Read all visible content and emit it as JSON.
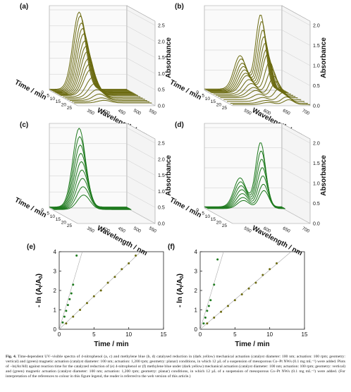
{
  "figure": {
    "caption_label": "Fig. 4.",
    "caption_text": "Time-dependent UV–visible spectra of 4-nitrophenol (a, c) and methylene blue (b, d) catalysed reduction in (dark yellow) mechanical actuation (catalyst diameter: 100 nm; actuation: 100 rpm; geometry: vertical) and (green) magnetic actuation (catalyst diameter: 100 nm; actuation: 1,200 rpm; geometry: planar) conditions, in which 12 µL of a suspension of mesoporous Co–Pt NWs (0.1 mg mL⁻¹) were added. Plots of −ln(At/A0) against reaction time for the catalyzed reduction of (e) 4-nitrophenol or (f) methylene blue under (dark yellow) mechanical actuation (catalyst diameter: 100 nm; actuation: 100 rpm; geometry: vertical) and (green) magnetic actuation (catalyst diameter: 100 nm; actuation: 1,200 rpm; geometry: planar) conditions, in which 12 µL of a suspension of mesoporous Co–Pt NWs (0.1 mg mL⁻¹) were added. (For interpretation of the references to colour in this figure legend, the reader is referred to the web version of this article.)"
  },
  "colors": {
    "yellow": "#6b6a10",
    "green": "#1e7a1e",
    "grid": "#cccccc"
  },
  "chart_data": [
    {
      "panel": "(a)",
      "type": "line",
      "subtype": "3d-waterfall",
      "color": "yellow",
      "xlabel": "Wavelength / nm",
      "ylabel": "Time / min",
      "zlabel": "Absorbance",
      "x_ticks": [
        "350",
        "400",
        "450",
        "500",
        "550"
      ],
      "y_ticks": [
        "0",
        "5",
        "10",
        "15",
        "20",
        "25"
      ],
      "z_ticks": [
        "0.0",
        "0.5",
        "1.0",
        "1.5",
        "2.0",
        "2.5"
      ],
      "xlim": [
        300,
        560
      ],
      "ylim": [
        0,
        25
      ],
      "zlim": [
        0,
        2.5
      ],
      "peak_wavelength": 400,
      "times": [
        0,
        1,
        2,
        3,
        4,
        5,
        6,
        7,
        8,
        9,
        10,
        12,
        14,
        16,
        18,
        20,
        22
      ],
      "peak_values": [
        2.4,
        2.3,
        2.1,
        1.95,
        1.8,
        1.6,
        1.45,
        1.3,
        1.1,
        0.95,
        0.8,
        0.6,
        0.45,
        0.3,
        0.2,
        0.12,
        0.08
      ]
    },
    {
      "panel": "(b)",
      "type": "line",
      "subtype": "3d-waterfall",
      "color": "yellow",
      "xlabel": "Wavelength / nm",
      "ylabel": "Time / min",
      "zlabel": "Absorbance",
      "x_ticks": [
        "550",
        "600",
        "650",
        "700"
      ],
      "y_ticks": [
        "0",
        "5",
        "10",
        "15",
        "20",
        "25"
      ],
      "z_ticks": [
        "0.0",
        "0.5",
        "1.0",
        "1.5",
        "2.0"
      ],
      "xlim": [
        520,
        720
      ],
      "ylim": [
        0,
        25
      ],
      "zlim": [
        0,
        2.0
      ],
      "peak_wavelength": 665,
      "times": [
        0,
        1,
        2,
        3,
        4,
        5,
        6,
        8,
        10,
        12,
        14,
        17,
        20,
        23,
        25
      ],
      "peak_values": [
        1.85,
        1.7,
        1.5,
        1.35,
        1.2,
        1.05,
        0.95,
        0.8,
        0.65,
        0.5,
        0.4,
        0.3,
        0.22,
        0.16,
        0.12
      ]
    },
    {
      "panel": "(c)",
      "type": "line",
      "subtype": "3d-waterfall",
      "color": "green",
      "xlabel": "Wavelength / nm",
      "ylabel": "Time / min",
      "zlabel": "Absorbance",
      "x_ticks": [
        "350",
        "400",
        "450",
        "500",
        "550"
      ],
      "y_ticks": [
        "0",
        "5",
        "10",
        "15",
        "20",
        "25"
      ],
      "z_ticks": [
        "0.0",
        "0.5",
        "1.0",
        "1.5",
        "2.0",
        "2.5"
      ],
      "xlim": [
        300,
        560
      ],
      "ylim": [
        0,
        25
      ],
      "zlim": [
        0,
        2.5
      ],
      "peak_wavelength": 400,
      "times": [
        0,
        0.5,
        1,
        1.5,
        2,
        2.5,
        3,
        3.5,
        4
      ],
      "peak_values": [
        2.45,
        2.2,
        1.95,
        1.7,
        1.45,
        1.2,
        0.95,
        0.7,
        0.45
      ]
    },
    {
      "panel": "(d)",
      "type": "line",
      "subtype": "3d-waterfall",
      "color": "green",
      "xlabel": "Wavelength / nm",
      "ylabel": "Time / min",
      "zlabel": "Absorbance",
      "x_ticks": [
        "550",
        "600",
        "650",
        "700"
      ],
      "y_ticks": [
        "0",
        "5",
        "10",
        "15",
        "20",
        "25"
      ],
      "z_ticks": [
        "0.0",
        "0.5",
        "1.0",
        "1.5",
        "2.0"
      ],
      "xlim": [
        520,
        720
      ],
      "ylim": [
        0,
        25
      ],
      "zlim": [
        0,
        2.0
      ],
      "peak_wavelength": 665,
      "times": [
        0,
        0.5,
        1,
        1.5,
        2,
        2.5,
        3
      ],
      "peak_values": [
        1.6,
        1.4,
        1.2,
        1.0,
        0.8,
        0.6,
        0.45
      ]
    },
    {
      "panel": "(e)",
      "type": "scatter",
      "xlabel": "Time / min",
      "ylabel": "- ln (A",
      "xlim": [
        0,
        15
      ],
      "ylim": [
        0,
        4
      ],
      "x_ticks": [
        0,
        5,
        10,
        15
      ],
      "y_ticks": [
        0,
        1,
        2,
        3,
        4
      ],
      "series": [
        {
          "color": "green",
          "x": [
            0.5,
            0.75,
            1.0,
            1.25,
            1.5,
            1.75,
            2.0,
            2.5
          ],
          "y": [
            0.35,
            0.65,
            0.95,
            1.25,
            1.55,
            1.85,
            2.3,
            3.8
          ]
        },
        {
          "color": "yellow",
          "x": [
            1,
            2,
            3,
            4,
            5,
            6,
            7,
            8,
            9,
            10,
            11
          ],
          "y": [
            0.3,
            0.65,
            1.0,
            1.35,
            1.7,
            2.0,
            2.4,
            2.7,
            3.1,
            3.4,
            3.8
          ]
        }
      ]
    },
    {
      "panel": "(f)",
      "type": "scatter",
      "xlabel": "Time / min",
      "ylabel": "- ln (A",
      "xlim": [
        0,
        15
      ],
      "ylim": [
        0,
        4
      ],
      "x_ticks": [
        0,
        5,
        10,
        15
      ],
      "y_ticks": [
        0,
        1,
        2,
        3,
        4
      ],
      "series": [
        {
          "color": "green",
          "x": [
            0.5,
            0.75,
            1.0,
            1.25,
            1.5,
            2.0,
            2.5
          ],
          "y": [
            0.3,
            0.6,
            0.95,
            1.2,
            1.5,
            2.3,
            3.6
          ]
        },
        {
          "color": "yellow",
          "x": [
            1,
            2,
            3,
            4,
            5,
            6,
            7,
            8,
            9,
            10,
            11
          ],
          "y": [
            0.3,
            0.6,
            0.9,
            1.2,
            1.5,
            1.8,
            2.1,
            2.4,
            2.8,
            3.1,
            3.4
          ]
        }
      ]
    }
  ]
}
